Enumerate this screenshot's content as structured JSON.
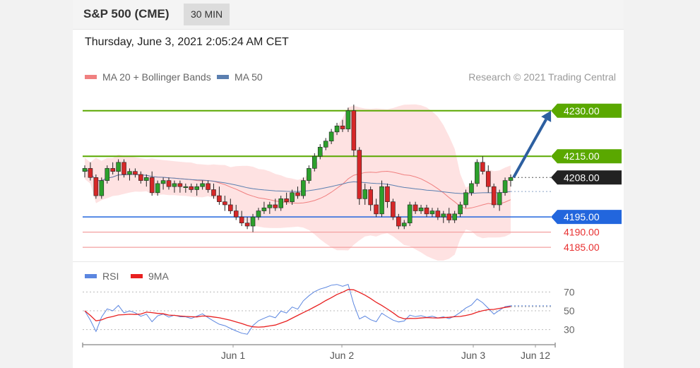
{
  "header": {
    "title": "S&P 500 (CME)",
    "timeframe": "30 MIN"
  },
  "datetime": "Thursday, June 3, 2021 2:05:24 AM CET",
  "legend": {
    "ma20": "MA 20 + Bollinger Bands",
    "ma50": "MA 50",
    "credit": "Research © 2021 Trading Central"
  },
  "colors": {
    "ma20": "#f08080",
    "ma50": "#5b7fb0",
    "band": "#fdd8d8",
    "green_level": "#5aa800",
    "blue_level": "#2266dd",
    "red_level": "#e83030",
    "current": "#222222",
    "arrow": "#2d5fa0",
    "rsi": "#5b86e0",
    "rsi_ma": "#e82020"
  },
  "chart_data": [
    {
      "type": "candlestick",
      "ylim": [
        4182,
        4236
      ],
      "levels": [
        {
          "value": 4230.0,
          "label": "4230.00",
          "kind": "resistance"
        },
        {
          "value": 4215.0,
          "label": "4215.00",
          "kind": "resistance"
        },
        {
          "value": 4208.0,
          "label": "4208.00",
          "kind": "current"
        },
        {
          "value": 4195.0,
          "label": "4195.00",
          "kind": "support"
        },
        {
          "value": 4190.0,
          "label": "4190.00",
          "kind": "support-minor"
        },
        {
          "value": 4185.0,
          "label": "4185.00",
          "kind": "support-minor"
        }
      ],
      "projection": {
        "from": 4208.0,
        "to": 4230.0
      },
      "candles": [
        [
          4210,
          4212,
          4208,
          4211
        ],
        [
          4211,
          4213,
          4207,
          4208
        ],
        [
          4208,
          4209,
          4201,
          4202
        ],
        [
          4202,
          4208,
          4201,
          4207
        ],
        [
          4207,
          4212,
          4206,
          4211
        ],
        [
          4211,
          4213,
          4209,
          4210
        ],
        [
          4210,
          4214,
          4207,
          4213
        ],
        [
          4213,
          4214,
          4208,
          4209
        ],
        [
          4209,
          4211,
          4207,
          4210
        ],
        [
          4210,
          4211,
          4208,
          4209
        ],
        [
          4209,
          4210,
          4206,
          4207
        ],
        [
          4207,
          4209,
          4205,
          4208
        ],
        [
          4208,
          4210,
          4202,
          4203
        ],
        [
          4203,
          4207,
          4202,
          4206
        ],
        [
          4206,
          4208,
          4204,
          4207
        ],
        [
          4207,
          4208,
          4204,
          4205
        ],
        [
          4205,
          4207,
          4203,
          4206
        ],
        [
          4206,
          4207,
          4203,
          4205
        ],
        [
          4205,
          4206,
          4203,
          4205
        ],
        [
          4205,
          4206,
          4203,
          4204
        ],
        [
          4204,
          4206,
          4202,
          4205
        ],
        [
          4205,
          4207,
          4204,
          4206
        ],
        [
          4206,
          4207,
          4203,
          4204
        ],
        [
          4204,
          4206,
          4201,
          4202
        ],
        [
          4202,
          4205,
          4199,
          4200
        ],
        [
          4200,
          4202,
          4197,
          4199
        ],
        [
          4199,
          4201,
          4196,
          4197
        ],
        [
          4197,
          4199,
          4194,
          4195
        ],
        [
          4195,
          4197,
          4192,
          4193
        ],
        [
          4193,
          4195,
          4191,
          4192
        ],
        [
          4192,
          4196,
          4190,
          4195
        ],
        [
          4195,
          4198,
          4194,
          4197
        ],
        [
          4197,
          4200,
          4196,
          4198
        ],
        [
          4198,
          4200,
          4196,
          4199
        ],
        [
          4199,
          4201,
          4197,
          4198
        ],
        [
          4198,
          4202,
          4197,
          4201
        ],
        [
          4201,
          4203,
          4199,
          4200
        ],
        [
          4200,
          4204,
          4199,
          4203
        ],
        [
          4203,
          4205,
          4201,
          4202
        ],
        [
          4202,
          4208,
          4201,
          4207
        ],
        [
          4207,
          4212,
          4206,
          4211
        ],
        [
          4211,
          4216,
          4210,
          4215
        ],
        [
          4215,
          4219,
          4214,
          4218
        ],
        [
          4218,
          4221,
          4217,
          4220
        ],
        [
          4220,
          4224,
          4219,
          4223
        ],
        [
          4223,
          4226,
          4222,
          4225
        ],
        [
          4225,
          4227,
          4223,
          4224
        ],
        [
          4224,
          4231,
          4223,
          4230
        ],
        [
          4230,
          4232,
          4215,
          4217
        ],
        [
          4217,
          4218,
          4199,
          4201
        ],
        [
          4201,
          4206,
          4199,
          4204
        ],
        [
          4204,
          4205,
          4197,
          4199
        ],
        [
          4199,
          4201,
          4195,
          4196
        ],
        [
          4196,
          4207,
          4195,
          4205
        ],
        [
          4205,
          4206,
          4198,
          4200
        ],
        [
          4200,
          4201,
          4194,
          4195
        ],
        [
          4195,
          4196,
          4191,
          4192
        ],
        [
          4192,
          4194,
          4191,
          4193
        ],
        [
          4193,
          4200,
          4192,
          4199
        ],
        [
          4199,
          4200,
          4196,
          4197
        ],
        [
          4197,
          4199,
          4196,
          4198
        ],
        [
          4198,
          4199,
          4195,
          4196
        ],
        [
          4196,
          4198,
          4195,
          4197
        ],
        [
          4197,
          4198,
          4194,
          4195
        ],
        [
          4195,
          4197,
          4193,
          4196
        ],
        [
          4196,
          4198,
          4193,
          4194
        ],
        [
          4194,
          4197,
          4193,
          4196
        ],
        [
          4196,
          4200,
          4195,
          4199
        ],
        [
          4199,
          4204,
          4198,
          4203
        ],
        [
          4203,
          4207,
          4202,
          4206
        ],
        [
          4206,
          4214,
          4205,
          4213
        ],
        [
          4213,
          4215,
          4209,
          4210
        ],
        [
          4210,
          4212,
          4203,
          4205
        ],
        [
          4205,
          4206,
          4198,
          4199
        ],
        [
          4199,
          4204,
          4197,
          4203
        ],
        [
          4203,
          4208,
          4202,
          4207
        ],
        [
          4207,
          4209,
          4205,
          4208
        ]
      ]
    },
    {
      "type": "line",
      "series": [
        {
          "name": "RSI"
        },
        {
          "name": "9MA"
        }
      ],
      "ylim": [
        20,
        80
      ],
      "yticks": [
        70,
        50,
        30
      ],
      "xticks": [
        "Jun 1",
        "Jun 2",
        "Jun 3",
        "Jun 12"
      ]
    }
  ]
}
